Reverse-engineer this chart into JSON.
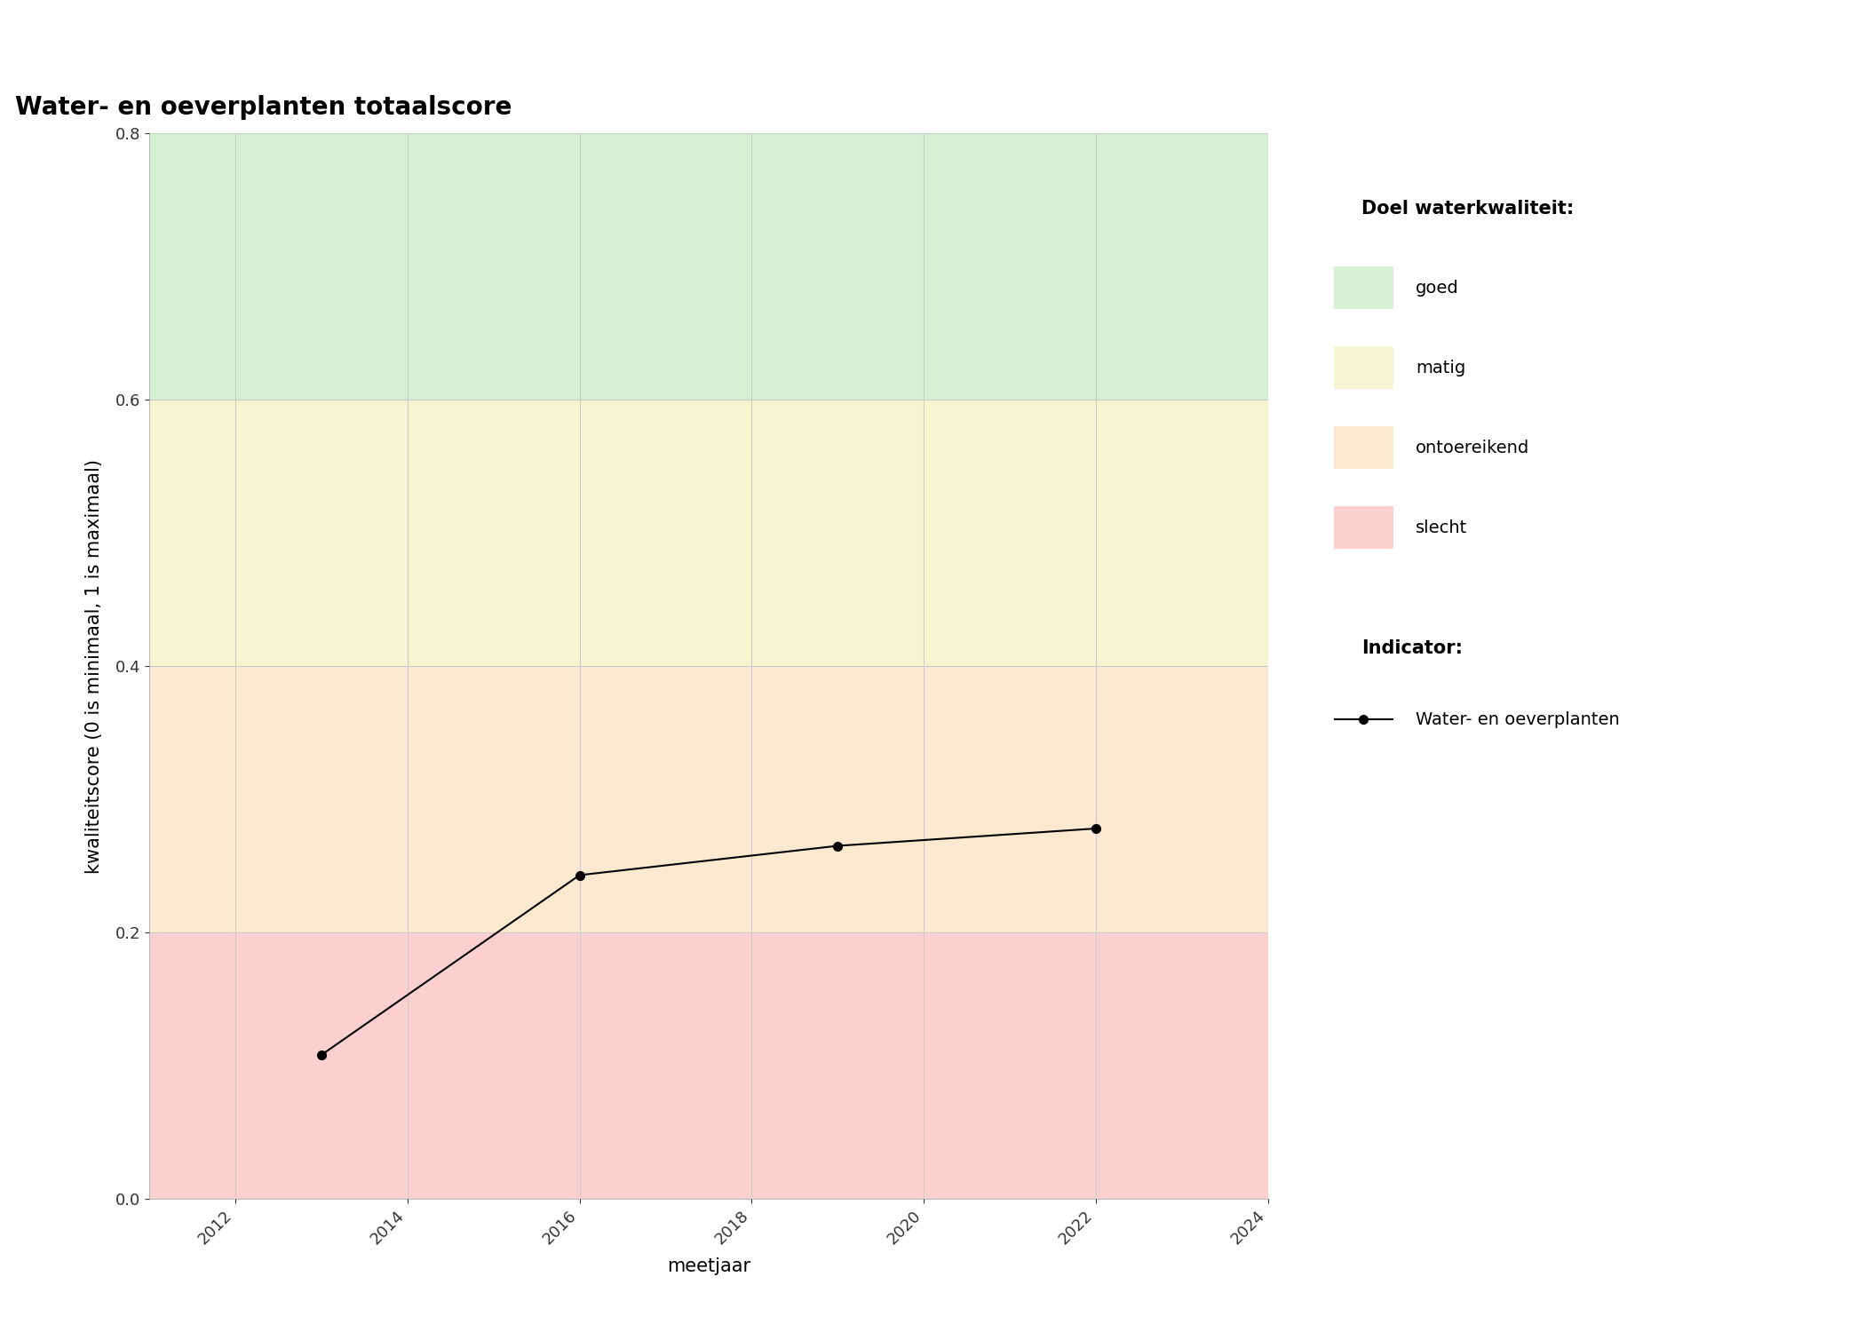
{
  "title": "Water- en oeverplanten totaalscore",
  "xlabel": "meetjaar",
  "ylabel": "kwaliteitscore (0 is minimaal, 1 is maximaal)",
  "years": [
    2013,
    2016,
    2019,
    2022
  ],
  "values": [
    0.108,
    0.243,
    0.265,
    0.278
  ],
  "xlim": [
    2011,
    2024
  ],
  "ylim": [
    0.0,
    0.8
  ],
  "xticks": [
    2012,
    2014,
    2016,
    2018,
    2020,
    2022,
    2024
  ],
  "yticks": [
    0.0,
    0.2,
    0.4,
    0.6,
    0.8
  ],
  "bg_color": "#ffffff",
  "plot_bg_color": "#ffffff",
  "zones": [
    {
      "label": "goed",
      "ymin": 0.6,
      "ymax": 0.8,
      "color": "#d5f0d5"
    },
    {
      "label": "matig",
      "ymin": 0.4,
      "ymax": 0.6,
      "color": "#f5f5d0"
    },
    {
      "label": "ontoereikend",
      "ymin": 0.2,
      "ymax": 0.4,
      "color": "#fde8d0"
    },
    {
      "label": "slecht",
      "ymin": 0.0,
      "ymax": 0.2,
      "color": "#fdd0d0"
    }
  ],
  "legend_title_quality": "Doel waterkwaliteit:",
  "legend_title_indicator": "Indicator:",
  "indicator_label": "Water- en oeverplanten",
  "line_color": "#000000",
  "marker_color": "#000000",
  "marker_size": 7,
  "line_width": 1.5,
  "grid_color": "#cccccc",
  "grid_alpha": 1.0,
  "title_fontsize": 20,
  "label_fontsize": 15,
  "tick_fontsize": 13,
  "legend_fontsize": 14,
  "legend_title_fontsize": 15
}
